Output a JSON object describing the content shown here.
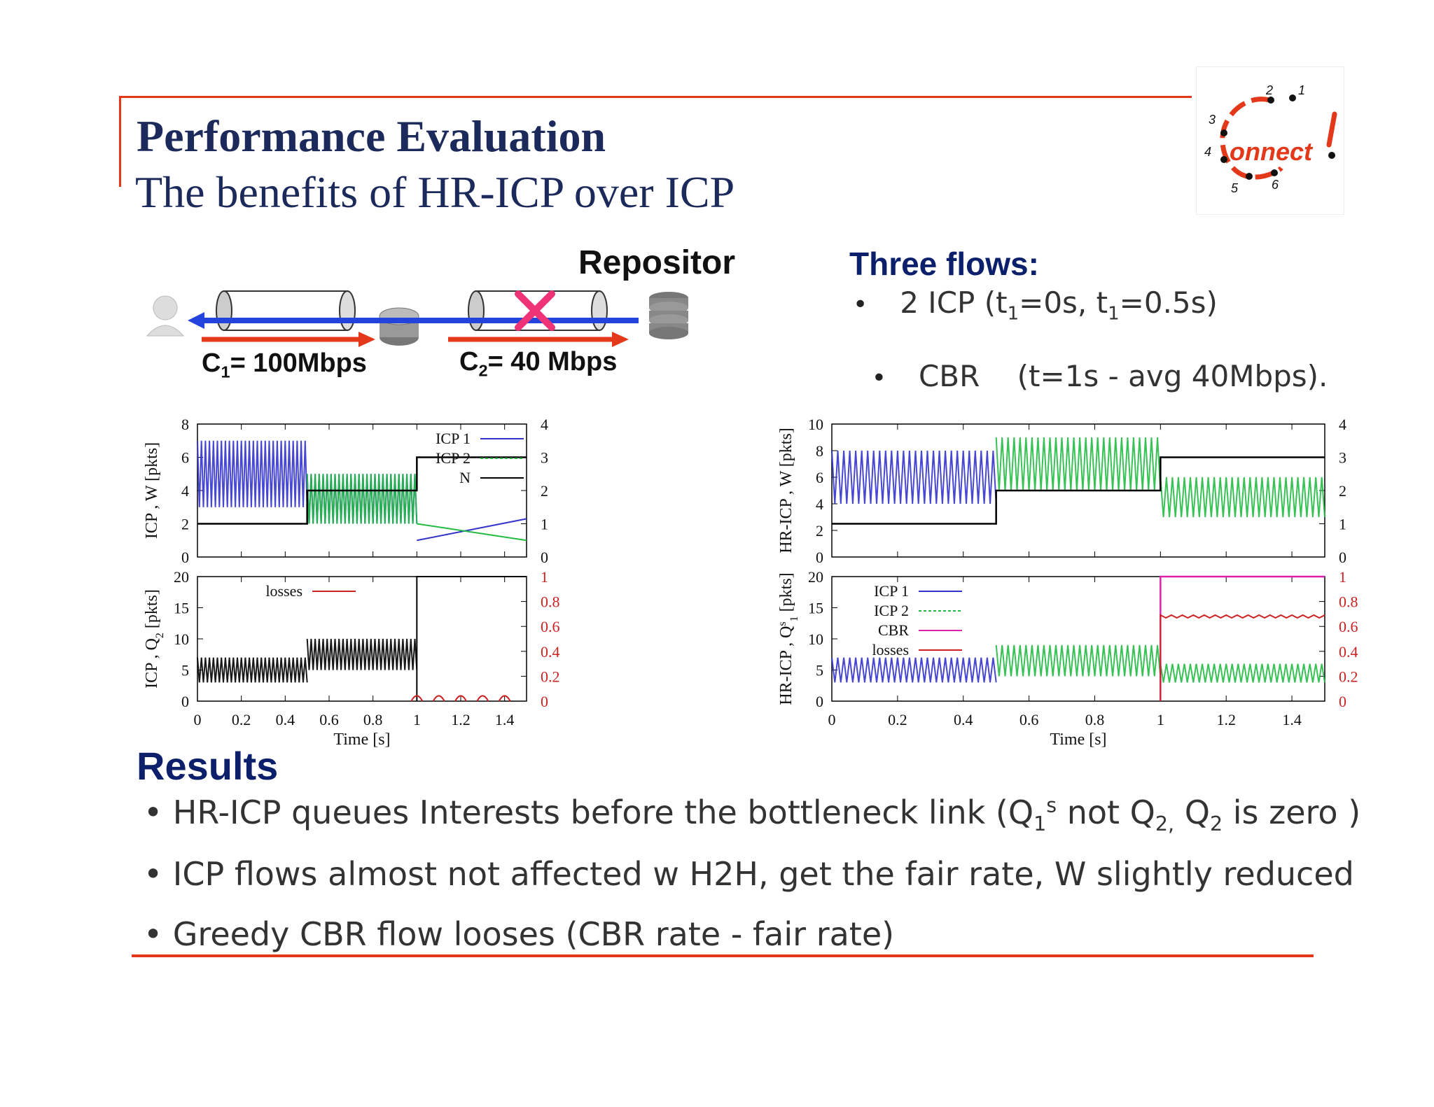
{
  "header": {
    "title": "Performance Evaluation",
    "subtitle": "The benefits of  HR-ICP over ICP"
  },
  "logo": {
    "text": "onnect",
    "digits": [
      "1",
      "2",
      "3",
      "4",
      "5",
      "6"
    ]
  },
  "diagram": {
    "repositor_label": "Repositor",
    "c1_label": "= 100Mbps",
    "c1_sym": "C",
    "c1_sub": "1",
    "c2_label": "= 40 Mbps",
    "c2_sym": "C",
    "c2_sub": "2",
    "icons": [
      "user-icon",
      "router-icon",
      "server-icon",
      "cross-icon"
    ]
  },
  "flows": {
    "heading": "Three flows:",
    "item1_pre": "2 ICP (t",
    "item1_sub1": "1",
    "item1_mid": "=0s, t",
    "item1_sub2": "1",
    "item1_post": "=0.5s)",
    "item2": "CBR    (t=1s - avg 40Mbps)."
  },
  "results": {
    "heading": "Results",
    "line1_pre": "HR-ICP queues Interests before the bottleneck link (Q",
    "line1_sub": "1",
    "line1_sup": "s",
    "line1_mid": " not Q",
    "line1_sub2": "2,",
    "line1_mid2": " Q",
    "line1_sub3": "2",
    "line1_post": " is zero )",
    "line2": "ICP flows almost not affected w H2H, get the fair rate, W slightly reduced",
    "line3": "Greedy CBR flow looses (CBR rate - fair rate)"
  },
  "colors": {
    "accent_red": "#e4381b",
    "title_navy": "#1b2a5a",
    "heading_blue": "#0b1f6b",
    "icp1": "#3333cc",
    "icp2": "#22bb44",
    "n": "#000000",
    "losses": "#cc2222",
    "cbr": "#dd22aa"
  },
  "chart_data": [
    {
      "type": "line",
      "panel": "top-left",
      "ylabel": "ICP , W [pkts]",
      "ylim": [
        0,
        8
      ],
      "yticks": [
        "0",
        "2",
        "4",
        "6",
        "8"
      ],
      "y2lim": [
        0,
        4
      ],
      "y2ticks": [
        "0",
        "1",
        "2",
        "3",
        "4"
      ],
      "xlim": [
        0,
        1.5
      ],
      "legend": [
        "ICP 1",
        "ICP 2",
        "N"
      ],
      "series": [
        {
          "name": "ICP 1",
          "segments": [
            {
              "x": [
                0,
                0.5
              ],
              "min": 3,
              "max": 7
            },
            {
              "x": [
                0.5,
                1.0
              ],
              "min": 2,
              "max": 5
            }
          ],
          "tail": {
            "x": [
              1.0,
              1.5
            ],
            "y": [
              1.0,
              2.3
            ]
          }
        },
        {
          "name": "ICP 2",
          "segments": [
            {
              "x": [
                0.5,
                1.0
              ],
              "min": 2,
              "max": 5
            }
          ],
          "tail": {
            "x": [
              1.0,
              1.5
            ],
            "y": [
              2.0,
              1.0
            ]
          }
        },
        {
          "name": "N",
          "step": {
            "x": [
              0,
              0.5,
              0.5,
              1.0,
              1.0,
              1.5
            ],
            "y": [
              1,
              1,
              2,
              2,
              3,
              3
            ]
          }
        }
      ]
    },
    {
      "type": "line",
      "panel": "bottom-left",
      "ylabel": "ICP , Q",
      "ylabel_sub": "2",
      "ylabel_post": " [pkts]",
      "ylim": [
        0,
        20
      ],
      "yticks": [
        "0",
        "5",
        "10",
        "15",
        "20"
      ],
      "y2lim": [
        0,
        1
      ],
      "y2ticks": [
        "0",
        "0.2",
        "0.4",
        "0.6",
        "0.8",
        "1"
      ],
      "xlim": [
        0,
        1.5
      ],
      "xticks": [
        "0",
        "0.2",
        "0.4",
        "0.6",
        "0.8",
        "1",
        "1.2",
        "1.4"
      ],
      "xlabel": "Time [s]",
      "legend": [
        "losses"
      ],
      "series": [
        {
          "name": "queue",
          "segments": [
            {
              "x": [
                0,
                0.5
              ],
              "min": 3,
              "max": 7
            },
            {
              "x": [
                0.5,
                1.0
              ],
              "min": 5,
              "max": 10
            }
          ],
          "after": {
            "x": [
              1.0,
              1.5
            ],
            "y": 20
          }
        },
        {
          "name": "losses",
          "bumps": [
            1.0,
            1.1,
            1.2,
            1.3,
            1.4
          ],
          "height": 0.03
        }
      ]
    },
    {
      "type": "line",
      "panel": "top-right",
      "ylabel": "HR-ICP , W [pkts]",
      "ylim": [
        0,
        10
      ],
      "yticks": [
        "0",
        "2",
        "4",
        "6",
        "8",
        "10"
      ],
      "y2lim": [
        0,
        4
      ],
      "y2ticks": [
        "0",
        "1",
        "2",
        "3",
        "4"
      ],
      "xlim": [
        0,
        1.5
      ],
      "series": [
        {
          "name": "ICP 1",
          "segments": [
            {
              "x": [
                0,
                0.5
              ],
              "min": 4,
              "max": 8
            }
          ]
        },
        {
          "name": "ICP 2",
          "segments": [
            {
              "x": [
                0.5,
                1.0
              ],
              "min": 5,
              "max": 9
            },
            {
              "x": [
                1.0,
                1.5
              ],
              "min": 3,
              "max": 6
            }
          ]
        },
        {
          "name": "N",
          "step": {
            "x": [
              0,
              0.5,
              0.5,
              1.0,
              1.0,
              1.5
            ],
            "y": [
              1,
              1,
              2,
              2,
              3,
              3
            ]
          }
        }
      ]
    },
    {
      "type": "line",
      "panel": "bottom-right",
      "ylabel": "HR-ICP , Q",
      "ylabel_sup": "s",
      "ylabel_sub": "1",
      "ylabel_post": " [pkts]",
      "ylim": [
        0,
        20
      ],
      "yticks": [
        "0",
        "5",
        "10",
        "15",
        "20"
      ],
      "y2lim": [
        0,
        1
      ],
      "y2ticks": [
        "0",
        "0.2",
        "0.4",
        "0.6",
        "0.8",
        "1"
      ],
      "xlim": [
        0,
        1.5
      ],
      "xticks": [
        "0",
        "0.2",
        "0.4",
        "0.6",
        "0.8",
        "1",
        "1.2",
        "1.4"
      ],
      "xlabel": "Time [s]",
      "legend": [
        "ICP 1",
        "ICP 2",
        "CBR",
        "losses"
      ],
      "series": [
        {
          "name": "ICP 1",
          "segments": [
            {
              "x": [
                0,
                0.5
              ],
              "min": 3,
              "max": 7
            }
          ]
        },
        {
          "name": "ICP 2",
          "segments": [
            {
              "x": [
                0.5,
                1.0
              ],
              "min": 4,
              "max": 9
            },
            {
              "x": [
                1.0,
                1.5
              ],
              "min": 3,
              "max": 6
            }
          ]
        },
        {
          "name": "CBR",
          "step": {
            "x": [
              1.0,
              1.0,
              1.5
            ],
            "y": [
              0,
              20,
              20
            ]
          }
        },
        {
          "name": "losses",
          "level": {
            "x": [
              1.0,
              1.5
            ],
            "y": 0.68
          }
        }
      ]
    }
  ]
}
